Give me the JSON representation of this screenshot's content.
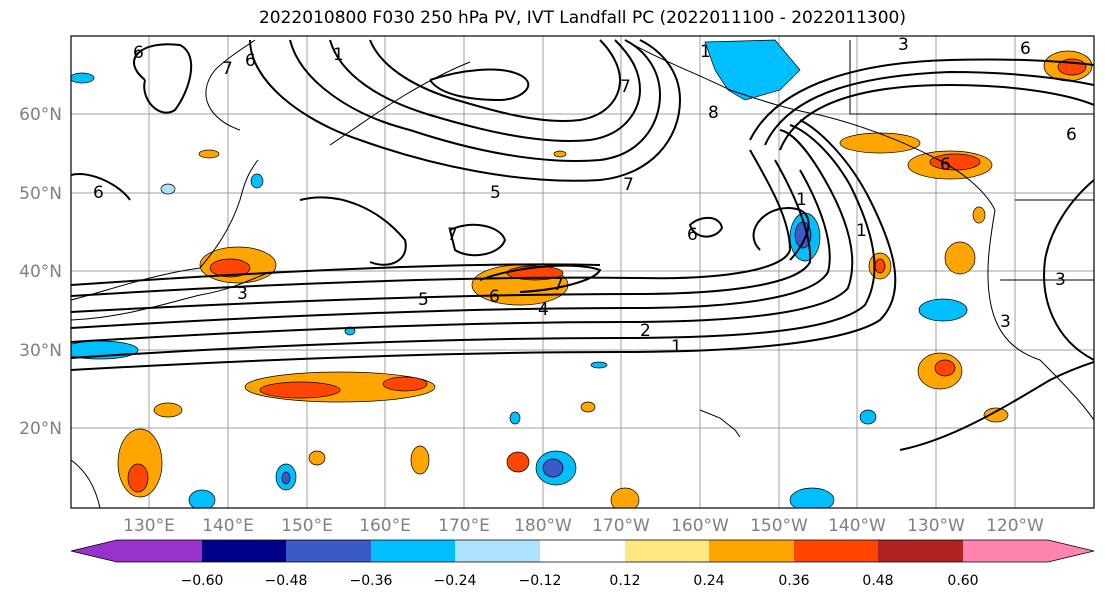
{
  "title": "2022010800 F030 250 hPa PV, IVT Landfall PC (2022011100 - 2022011300)",
  "lat_labels": [
    "60°N",
    "50°N",
    "40°N",
    "30°N",
    "20°N"
  ],
  "lon_labels": [
    "130°E",
    "140°E",
    "150°E",
    "160°E",
    "170°E",
    "180°W",
    "170°W",
    "160°W",
    "150°W",
    "140°W",
    "130°W",
    "120°W"
  ],
  "colorbar": {
    "ticks": [
      "−0.60",
      "−0.48",
      "−0.36",
      "−0.24",
      "−0.12",
      "0.12",
      "0.24",
      "0.36",
      "0.48",
      "0.60"
    ],
    "colors": [
      "#9932CC",
      "#00008B",
      "#3A5BC7",
      "#00BFFF",
      "#AEE1FB",
      "#FFFFFF",
      "#FFE680",
      "#FFA500",
      "#FF4500",
      "#B22222",
      "#FF85B0"
    ]
  },
  "contour_labels": [
    "6",
    "1",
    "7",
    "6",
    "6",
    "1",
    "7",
    "8",
    "7",
    "5",
    "6",
    "1",
    "7",
    "6",
    "1",
    "6",
    "3",
    "5",
    "6",
    "7",
    "4",
    "2",
    "1",
    "3",
    "3",
    "3",
    "6"
  ]
}
